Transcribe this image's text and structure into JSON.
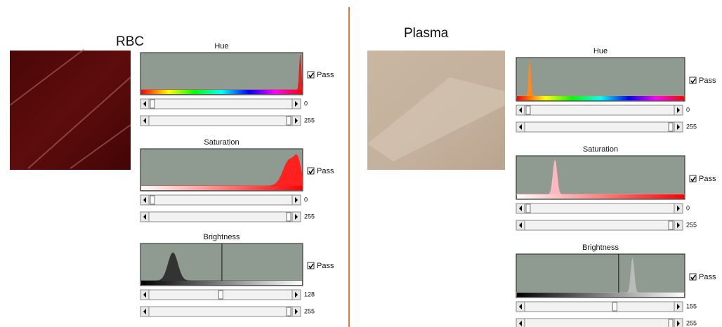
{
  "panels": [
    {
      "title": "RBC",
      "channels": [
        {
          "label": "Hue",
          "pass": "Pass",
          "min": 0,
          "max": 255
        },
        {
          "label": "Saturation",
          "pass": "Pass",
          "min": 0,
          "max": 255
        },
        {
          "label": "Brightness",
          "pass": "Pass",
          "min": 128,
          "max": 255
        }
      ]
    },
    {
      "title": "Plasma",
      "channels": [
        {
          "label": "Hue",
          "pass": "Pass",
          "min": 0,
          "max": 255
        },
        {
          "label": "Saturation",
          "pass": "Pass",
          "min": 0,
          "max": 255
        },
        {
          "label": "Brightness",
          "pass": "Pass",
          "min": 155,
          "max": 255
        }
      ]
    }
  ]
}
